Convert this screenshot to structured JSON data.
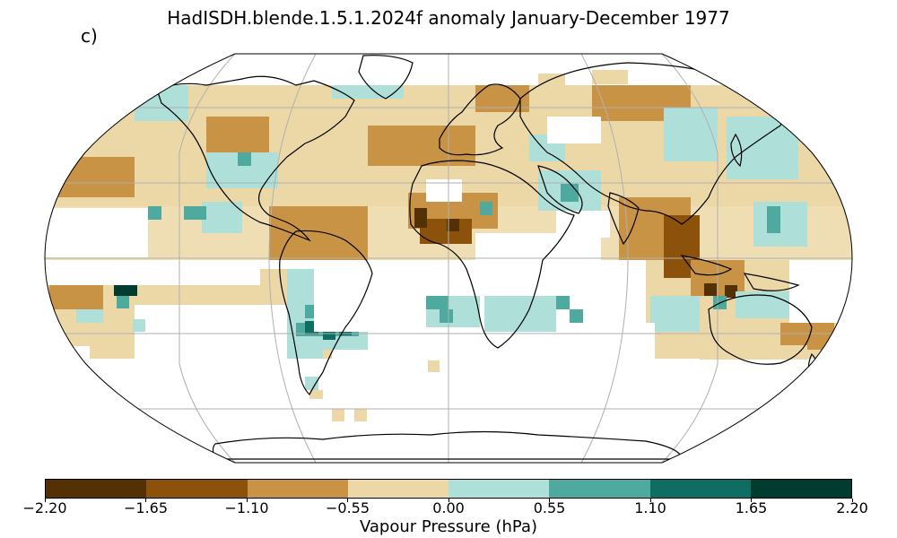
{
  "title": "HadISDH.blende.1.5.1.2024f anomaly January-December 1977",
  "panel_label": "c)",
  "colorbar": {
    "label": "Vapour Pressure (hPa)",
    "ticks": [
      "−2.20",
      "−1.65",
      "−1.10",
      "−0.55",
      "0.00",
      "0.55",
      "1.10",
      "1.65",
      "2.20"
    ],
    "colors": [
      "#543005",
      "#8c510a",
      "#c89344",
      "#ecd8a6",
      "#aedfd9",
      "#4ea99f",
      "#0e6e64",
      "#003c30"
    ]
  },
  "map": {
    "projection": "Robinson",
    "graticule_color": "#b0b0b0",
    "land_outline_color": "#000000",
    "missing_color": "#ffffff"
  }
}
